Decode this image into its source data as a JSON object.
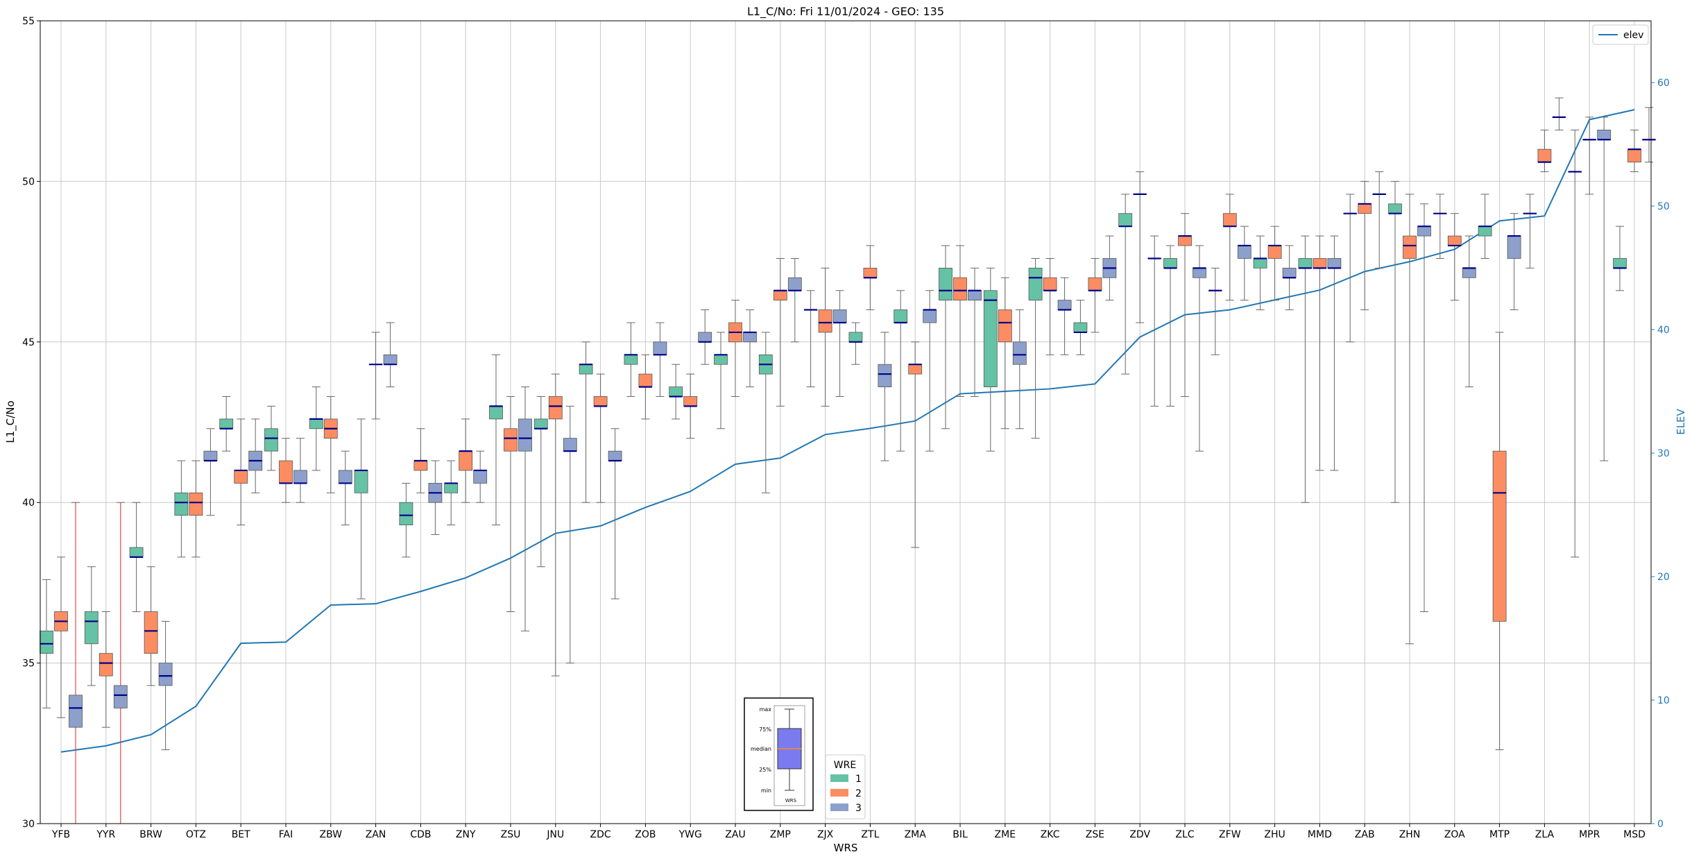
{
  "chart_data": {
    "type": "box",
    "title": "L1_C/No: Fri 11/01/2024 - GEO: 135",
    "xlabel": "WRS",
    "ylabel": "L1_C/No",
    "y2label": "ELEV",
    "ylim": [
      30,
      55
    ],
    "y2lim": [
      0,
      65
    ],
    "yticks": [
      30,
      35,
      40,
      45,
      50,
      55
    ],
    "y2ticks": [
      0,
      10,
      20,
      30,
      40,
      50,
      60
    ],
    "grid": true,
    "categories": [
      "YFB",
      "YYR",
      "BRW",
      "OTZ",
      "BET",
      "FAI",
      "ZBW",
      "ZAN",
      "CDB",
      "ZNY",
      "ZSU",
      "JNU",
      "ZDC",
      "ZOB",
      "YWG",
      "ZAU",
      "ZMP",
      "ZJX",
      "ZTL",
      "ZMA",
      "BIL",
      "ZME",
      "ZKC",
      "ZSE",
      "ZDV",
      "ZLC",
      "ZFW",
      "ZHU",
      "MMD",
      "ZAB",
      "ZHN",
      "ZOA",
      "MTP",
      "ZLA",
      "MPR",
      "MSD"
    ],
    "wre_colors": {
      "1": "#66c2a5",
      "2": "#fc8d62",
      "3": "#8da0cb"
    },
    "median_color": "#00008b",
    "elev_color": "#1f77b4",
    "elev_label": "elev",
    "wre_legend_title": "WRE",
    "wre_legend_labels": [
      "1",
      "2",
      "3"
    ],
    "key_labels": {
      "max": "max",
      "q3": "75%",
      "median": "median",
      "q1": "25%",
      "min": "min",
      "x": "WRS"
    },
    "key_colors": {
      "box": "#7b7bef",
      "median": "#ff8c1a"
    },
    "elev": [
      5.8,
      6.3,
      7.2,
      9.5,
      14.6,
      14.7,
      17.7,
      17.8,
      18.8,
      19.9,
      21.5,
      23.5,
      24.1,
      25.6,
      26.9,
      29.1,
      29.6,
      31.5,
      32.0,
      32.6,
      34.8,
      35.0,
      35.2,
      35.6,
      39.4,
      41.2,
      41.6,
      42.4,
      43.2,
      44.7,
      45.5,
      46.5,
      48.8,
      49.2,
      57.0,
      57.8
    ],
    "boxes": [
      {
        "station": "YFB",
        "wre": 1,
        "min": 33.6,
        "q1": 35.3,
        "median": 35.6,
        "q3": 36.0,
        "max": 37.6
      },
      {
        "station": "YFB",
        "wre": 2,
        "min": 33.3,
        "q1": 36.0,
        "median": 36.3,
        "q3": 36.6,
        "max": 38.3
      },
      {
        "station": "YFB",
        "wre": 3,
        "min": 30.0,
        "q1": 33.0,
        "median": 33.6,
        "q3": 34.0,
        "max": 40.0
      },
      {
        "station": "YYR",
        "wre": 1,
        "min": 34.3,
        "q1": 35.6,
        "median": 36.3,
        "q3": 36.6,
        "max": 38.0
      },
      {
        "station": "YYR",
        "wre": 2,
        "min": 33.0,
        "q1": 34.6,
        "median": 35.0,
        "q3": 35.3,
        "max": 36.6
      },
      {
        "station": "YYR",
        "wre": 3,
        "min": 30.0,
        "q1": 33.6,
        "median": 34.0,
        "q3": 34.3,
        "max": 40.0
      },
      {
        "station": "BRW",
        "wre": 1,
        "min": 36.6,
        "q1": 38.3,
        "median": 38.3,
        "q3": 38.6,
        "max": 40.0
      },
      {
        "station": "BRW",
        "wre": 2,
        "min": 34.3,
        "q1": 35.3,
        "median": 36.0,
        "q3": 36.6,
        "max": 38.0
      },
      {
        "station": "BRW",
        "wre": 3,
        "min": 32.3,
        "q1": 34.3,
        "median": 34.6,
        "q3": 35.0,
        "max": 36.3
      },
      {
        "station": "OTZ",
        "wre": 1,
        "min": 38.3,
        "q1": 39.6,
        "median": 40.0,
        "q3": 40.3,
        "max": 41.3
      },
      {
        "station": "OTZ",
        "wre": 2,
        "min": 38.3,
        "q1": 39.6,
        "median": 40.0,
        "q3": 40.3,
        "max": 41.3
      },
      {
        "station": "OTZ",
        "wre": 3,
        "min": 39.6,
        "q1": 41.3,
        "median": 41.3,
        "q3": 41.6,
        "max": 42.3
      },
      {
        "station": "BET",
        "wre": 1,
        "min": 41.6,
        "q1": 42.3,
        "median": 42.3,
        "q3": 42.6,
        "max": 43.3
      },
      {
        "station": "BET",
        "wre": 2,
        "min": 39.3,
        "q1": 40.6,
        "median": 41.0,
        "q3": 41.0,
        "max": 42.6
      },
      {
        "station": "BET",
        "wre": 3,
        "min": 40.3,
        "q1": 41.0,
        "median": 41.3,
        "q3": 41.6,
        "max": 42.6
      },
      {
        "station": "FAI",
        "wre": 1,
        "min": 41.0,
        "q1": 41.6,
        "median": 42.0,
        "q3": 42.3,
        "max": 43.0
      },
      {
        "station": "FAI",
        "wre": 2,
        "min": 40.0,
        "q1": 40.6,
        "median": 40.6,
        "q3": 41.3,
        "max": 42.0
      },
      {
        "station": "FAI",
        "wre": 3,
        "min": 40.0,
        "q1": 40.6,
        "median": 40.6,
        "q3": 41.0,
        "max": 42.0
      },
      {
        "station": "ZBW",
        "wre": 1,
        "min": 41.0,
        "q1": 42.3,
        "median": 42.6,
        "q3": 42.6,
        "max": 43.6
      },
      {
        "station": "ZBW",
        "wre": 2,
        "min": 40.3,
        "q1": 42.0,
        "median": 42.3,
        "q3": 42.6,
        "max": 43.3
      },
      {
        "station": "ZBW",
        "wre": 3,
        "min": 39.3,
        "q1": 40.6,
        "median": 40.6,
        "q3": 41.0,
        "max": 41.6
      },
      {
        "station": "ZAN",
        "wre": 1,
        "min": 37.0,
        "q1": 40.3,
        "median": 41.0,
        "q3": 41.0,
        "max": 42.6
      },
      {
        "station": "ZAN",
        "wre": 2,
        "min": 42.6,
        "q1": 44.3,
        "median": 44.3,
        "q3": 44.3,
        "max": 45.3
      },
      {
        "station": "ZAN",
        "wre": 3,
        "min": 43.6,
        "q1": 44.3,
        "median": 44.3,
        "q3": 44.6,
        "max": 45.6
      },
      {
        "station": "CDB",
        "wre": 1,
        "min": 38.3,
        "q1": 39.3,
        "median": 39.6,
        "q3": 40.0,
        "max": 40.6
      },
      {
        "station": "CDB",
        "wre": 2,
        "min": 40.3,
        "q1": 41.0,
        "median": 41.3,
        "q3": 41.3,
        "max": 42.3
      },
      {
        "station": "CDB",
        "wre": 3,
        "min": 39.0,
        "q1": 40.0,
        "median": 40.3,
        "q3": 40.6,
        "max": 41.3
      },
      {
        "station": "ZNY",
        "wre": 1,
        "min": 39.3,
        "q1": 40.3,
        "median": 40.6,
        "q3": 40.6,
        "max": 41.3
      },
      {
        "station": "ZNY",
        "wre": 2,
        "min": 40.0,
        "q1": 41.0,
        "median": 41.6,
        "q3": 41.6,
        "max": 42.6
      },
      {
        "station": "ZNY",
        "wre": 3,
        "min": 40.0,
        "q1": 40.6,
        "median": 41.0,
        "q3": 41.0,
        "max": 41.6
      },
      {
        "station": "ZSU",
        "wre": 1,
        "min": 39.3,
        "q1": 42.6,
        "median": 43.0,
        "q3": 43.0,
        "max": 44.6
      },
      {
        "station": "ZSU",
        "wre": 2,
        "min": 36.6,
        "q1": 41.6,
        "median": 42.0,
        "q3": 42.3,
        "max": 43.3
      },
      {
        "station": "ZSU",
        "wre": 3,
        "min": 36.0,
        "q1": 41.6,
        "median": 42.0,
        "q3": 42.6,
        "max": 43.6
      },
      {
        "station": "JNU",
        "wre": 1,
        "min": 38.0,
        "q1": 42.3,
        "median": 42.3,
        "q3": 42.6,
        "max": 43.3
      },
      {
        "station": "JNU",
        "wre": 2,
        "min": 34.6,
        "q1": 42.6,
        "median": 43.0,
        "q3": 43.3,
        "max": 44.0
      },
      {
        "station": "JNU",
        "wre": 3,
        "min": 35.0,
        "q1": 41.6,
        "median": 41.6,
        "q3": 42.0,
        "max": 43.0
      },
      {
        "station": "ZDC",
        "wre": 1,
        "min": 40.0,
        "q1": 44.0,
        "median": 44.3,
        "q3": 44.3,
        "max": 45.0
      },
      {
        "station": "ZDC",
        "wre": 2,
        "min": 40.0,
        "q1": 43.0,
        "median": 43.0,
        "q3": 43.3,
        "max": 44.0
      },
      {
        "station": "ZDC",
        "wre": 3,
        "min": 37.0,
        "q1": 41.3,
        "median": 41.3,
        "q3": 41.6,
        "max": 42.3
      },
      {
        "station": "ZOB",
        "wre": 1,
        "min": 43.3,
        "q1": 44.3,
        "median": 44.6,
        "q3": 44.6,
        "max": 45.6
      },
      {
        "station": "ZOB",
        "wre": 2,
        "min": 42.6,
        "q1": 43.6,
        "median": 43.6,
        "q3": 44.0,
        "max": 44.6
      },
      {
        "station": "ZOB",
        "wre": 3,
        "min": 43.3,
        "q1": 44.6,
        "median": 44.6,
        "q3": 45.0,
        "max": 45.6
      },
      {
        "station": "YWG",
        "wre": 1,
        "min": 42.6,
        "q1": 43.3,
        "median": 43.3,
        "q3": 43.6,
        "max": 44.3
      },
      {
        "station": "YWG",
        "wre": 2,
        "min": 42.0,
        "q1": 43.0,
        "median": 43.0,
        "q3": 43.3,
        "max": 44.0
      },
      {
        "station": "YWG",
        "wre": 3,
        "min": 44.3,
        "q1": 45.0,
        "median": 45.0,
        "q3": 45.3,
        "max": 46.0
      },
      {
        "station": "ZAU",
        "wre": 1,
        "min": 42.3,
        "q1": 44.3,
        "median": 44.6,
        "q3": 44.6,
        "max": 45.3
      },
      {
        "station": "ZAU",
        "wre": 2,
        "min": 43.3,
        "q1": 45.0,
        "median": 45.3,
        "q3": 45.6,
        "max": 46.3
      },
      {
        "station": "ZAU",
        "wre": 3,
        "min": 43.6,
        "q1": 45.0,
        "median": 45.3,
        "q3": 45.3,
        "max": 46.0
      },
      {
        "station": "ZMP",
        "wre": 1,
        "min": 40.3,
        "q1": 44.0,
        "median": 44.3,
        "q3": 44.6,
        "max": 45.3
      },
      {
        "station": "ZMP",
        "wre": 2,
        "min": 43.0,
        "q1": 46.3,
        "median": 46.6,
        "q3": 46.6,
        "max": 47.6
      },
      {
        "station": "ZMP",
        "wre": 3,
        "min": 45.0,
        "q1": 46.6,
        "median": 46.6,
        "q3": 47.0,
        "max": 47.6
      },
      {
        "station": "ZJX",
        "wre": 1,
        "min": 43.6,
        "q1": 46.0,
        "median": 46.0,
        "q3": 46.0,
        "max": 46.6
      },
      {
        "station": "ZJX",
        "wre": 2,
        "min": 43.0,
        "q1": 45.3,
        "median": 45.6,
        "q3": 46.0,
        "max": 47.3
      },
      {
        "station": "ZJX",
        "wre": 3,
        "min": 43.3,
        "q1": 45.6,
        "median": 45.6,
        "q3": 46.0,
        "max": 46.6
      },
      {
        "station": "ZTL",
        "wre": 1,
        "min": 44.3,
        "q1": 45.0,
        "median": 45.0,
        "q3": 45.3,
        "max": 45.6
      },
      {
        "station": "ZTL",
        "wre": 2,
        "min": 46.0,
        "q1": 47.0,
        "median": 47.0,
        "q3": 47.3,
        "max": 48.0
      },
      {
        "station": "ZTL",
        "wre": 3,
        "min": 41.3,
        "q1": 43.6,
        "median": 44.0,
        "q3": 44.3,
        "max": 45.3
      },
      {
        "station": "ZMA",
        "wre": 1,
        "min": 41.6,
        "q1": 45.6,
        "median": 45.6,
        "q3": 46.0,
        "max": 46.6
      },
      {
        "station": "ZMA",
        "wre": 2,
        "min": 38.6,
        "q1": 44.0,
        "median": 44.3,
        "q3": 44.3,
        "max": 45.0
      },
      {
        "station": "ZMA",
        "wre": 3,
        "min": 41.6,
        "q1": 45.6,
        "median": 46.0,
        "q3": 46.0,
        "max": 46.6
      },
      {
        "station": "BIL",
        "wre": 1,
        "min": 42.3,
        "q1": 46.3,
        "median": 46.6,
        "q3": 47.3,
        "max": 48.0
      },
      {
        "station": "BIL",
        "wre": 2,
        "min": 43.3,
        "q1": 46.3,
        "median": 46.6,
        "q3": 47.0,
        "max": 48.0
      },
      {
        "station": "BIL",
        "wre": 3,
        "min": 43.3,
        "q1": 46.3,
        "median": 46.6,
        "q3": 46.6,
        "max": 47.3
      },
      {
        "station": "ZME",
        "wre": 1,
        "min": 41.6,
        "q1": 43.6,
        "median": 46.3,
        "q3": 46.6,
        "max": 47.3
      },
      {
        "station": "ZME",
        "wre": 2,
        "min": 42.3,
        "q1": 45.0,
        "median": 45.6,
        "q3": 46.0,
        "max": 47.0
      },
      {
        "station": "ZME",
        "wre": 3,
        "min": 42.3,
        "q1": 44.3,
        "median": 44.6,
        "q3": 45.0,
        "max": 46.0
      },
      {
        "station": "ZKC",
        "wre": 1,
        "min": 42.0,
        "q1": 46.3,
        "median": 47.0,
        "q3": 47.3,
        "max": 47.6
      },
      {
        "station": "ZKC",
        "wre": 2,
        "min": 44.6,
        "q1": 46.6,
        "median": 46.6,
        "q3": 47.0,
        "max": 47.6
      },
      {
        "station": "ZKC",
        "wre": 3,
        "min": 44.6,
        "q1": 46.0,
        "median": 46.0,
        "q3": 46.3,
        "max": 47.0
      },
      {
        "station": "ZSE",
        "wre": 1,
        "min": 44.6,
        "q1": 45.3,
        "median": 45.3,
        "q3": 45.6,
        "max": 46.3
      },
      {
        "station": "ZSE",
        "wre": 2,
        "min": 45.3,
        "q1": 46.6,
        "median": 46.6,
        "q3": 47.0,
        "max": 47.6
      },
      {
        "station": "ZSE",
        "wre": 3,
        "min": 46.3,
        "q1": 47.0,
        "median": 47.3,
        "q3": 47.6,
        "max": 48.3
      },
      {
        "station": "ZDV",
        "wre": 1,
        "min": 44.0,
        "q1": 48.6,
        "median": 48.6,
        "q3": 49.0,
        "max": 49.6
      },
      {
        "station": "ZDV",
        "wre": 2,
        "min": 45.6,
        "q1": 49.6,
        "median": 49.6,
        "q3": 49.6,
        "max": 50.3
      },
      {
        "station": "ZDV",
        "wre": 3,
        "min": 43.0,
        "q1": 47.6,
        "median": 47.6,
        "q3": 47.6,
        "max": 48.3
      },
      {
        "station": "ZLC",
        "wre": 1,
        "min": 43.0,
        "q1": 47.3,
        "median": 47.3,
        "q3": 47.6,
        "max": 48.0
      },
      {
        "station": "ZLC",
        "wre": 2,
        "min": 43.3,
        "q1": 48.0,
        "median": 48.3,
        "q3": 48.3,
        "max": 49.0
      },
      {
        "station": "ZLC",
        "wre": 3,
        "min": 41.6,
        "q1": 47.0,
        "median": 47.3,
        "q3": 47.3,
        "max": 48.0
      },
      {
        "station": "ZFW",
        "wre": 1,
        "min": 44.6,
        "q1": 46.6,
        "median": 46.6,
        "q3": 46.6,
        "max": 47.3
      },
      {
        "station": "ZFW",
        "wre": 2,
        "min": 46.3,
        "q1": 48.6,
        "median": 48.6,
        "q3": 49.0,
        "max": 49.6
      },
      {
        "station": "ZFW",
        "wre": 3,
        "min": 46.3,
        "q1": 47.6,
        "median": 48.0,
        "q3": 48.0,
        "max": 48.6
      },
      {
        "station": "ZHU",
        "wre": 1,
        "min": 46.0,
        "q1": 47.3,
        "median": 47.6,
        "q3": 47.6,
        "max": 48.3
      },
      {
        "station": "ZHU",
        "wre": 2,
        "min": 46.3,
        "q1": 47.6,
        "median": 48.0,
        "q3": 48.0,
        "max": 48.6
      },
      {
        "station": "ZHU",
        "wre": 3,
        "min": 46.0,
        "q1": 47.0,
        "median": 47.0,
        "q3": 47.3,
        "max": 48.0
      },
      {
        "station": "MMD",
        "wre": 1,
        "min": 40.0,
        "q1": 47.3,
        "median": 47.3,
        "q3": 47.6,
        "max": 48.3
      },
      {
        "station": "MMD",
        "wre": 2,
        "min": 41.0,
        "q1": 47.3,
        "median": 47.3,
        "q3": 47.6,
        "max": 48.3
      },
      {
        "station": "MMD",
        "wre": 3,
        "min": 41.0,
        "q1": 47.3,
        "median": 47.3,
        "q3": 47.6,
        "max": 48.3
      },
      {
        "station": "ZAB",
        "wre": 1,
        "min": 45.0,
        "q1": 49.0,
        "median": 49.0,
        "q3": 49.0,
        "max": 49.6
      },
      {
        "station": "ZAB",
        "wre": 2,
        "min": 46.0,
        "q1": 49.0,
        "median": 49.3,
        "q3": 49.3,
        "max": 50.0
      },
      {
        "station": "ZAB",
        "wre": 3,
        "min": 47.3,
        "q1": 49.6,
        "median": 49.6,
        "q3": 49.6,
        "max": 50.3
      },
      {
        "station": "ZHN",
        "wre": 1,
        "min": 40.0,
        "q1": 49.0,
        "median": 49.0,
        "q3": 49.3,
        "max": 50.0
      },
      {
        "station": "ZHN",
        "wre": 2,
        "min": 35.6,
        "q1": 47.6,
        "median": 48.0,
        "q3": 48.3,
        "max": 49.6
      },
      {
        "station": "ZHN",
        "wre": 3,
        "min": 36.6,
        "q1": 48.3,
        "median": 48.6,
        "q3": 48.6,
        "max": 49.3
      },
      {
        "station": "ZOA",
        "wre": 1,
        "min": 47.6,
        "q1": 49.0,
        "median": 49.0,
        "q3": 49.0,
        "max": 49.6
      },
      {
        "station": "ZOA",
        "wre": 2,
        "min": 46.3,
        "q1": 48.0,
        "median": 48.0,
        "q3": 48.3,
        "max": 49.0
      },
      {
        "station": "ZOA",
        "wre": 3,
        "min": 43.6,
        "q1": 47.0,
        "median": 47.3,
        "q3": 47.3,
        "max": 48.3
      },
      {
        "station": "MTP",
        "wre": 1,
        "min": 47.6,
        "q1": 48.3,
        "median": 48.6,
        "q3": 48.6,
        "max": 49.6
      },
      {
        "station": "MTP",
        "wre": 2,
        "min": 32.3,
        "q1": 36.3,
        "median": 40.3,
        "q3": 41.6,
        "max": 45.3
      },
      {
        "station": "MTP",
        "wre": 3,
        "min": 46.0,
        "q1": 47.6,
        "median": 48.3,
        "q3": 48.3,
        "max": 49.0
      },
      {
        "station": "ZLA",
        "wre": 1,
        "min": 47.3,
        "q1": 49.0,
        "median": 49.0,
        "q3": 49.0,
        "max": 49.6
      },
      {
        "station": "ZLA",
        "wre": 2,
        "min": 50.3,
        "q1": 50.6,
        "median": 50.6,
        "q3": 51.0,
        "max": 51.6
      },
      {
        "station": "ZLA",
        "wre": 3,
        "min": 51.6,
        "q1": 52.0,
        "median": 52.0,
        "q3": 52.0,
        "max": 52.6
      },
      {
        "station": "MPR",
        "wre": 1,
        "min": 38.3,
        "q1": 50.3,
        "median": 50.3,
        "q3": 50.3,
        "max": 51.6
      },
      {
        "station": "MPR",
        "wre": 2,
        "min": 49.6,
        "q1": 51.3,
        "median": 51.3,
        "q3": 51.3,
        "max": 52.0
      },
      {
        "station": "MPR",
        "wre": 3,
        "min": 41.3,
        "q1": 51.3,
        "median": 51.3,
        "q3": 51.6,
        "max": 52.0
      },
      {
        "station": "MSD",
        "wre": 1,
        "min": 46.6,
        "q1": 47.3,
        "median": 47.3,
        "q3": 47.6,
        "max": 48.6
      },
      {
        "station": "MSD",
        "wre": 2,
        "min": 50.3,
        "q1": 50.6,
        "median": 51.0,
        "q3": 51.0,
        "max": 51.6
      },
      {
        "station": "MSD",
        "wre": 3,
        "min": 50.6,
        "q1": 51.3,
        "median": 51.3,
        "q3": 51.3,
        "max": 52.3
      }
    ]
  }
}
